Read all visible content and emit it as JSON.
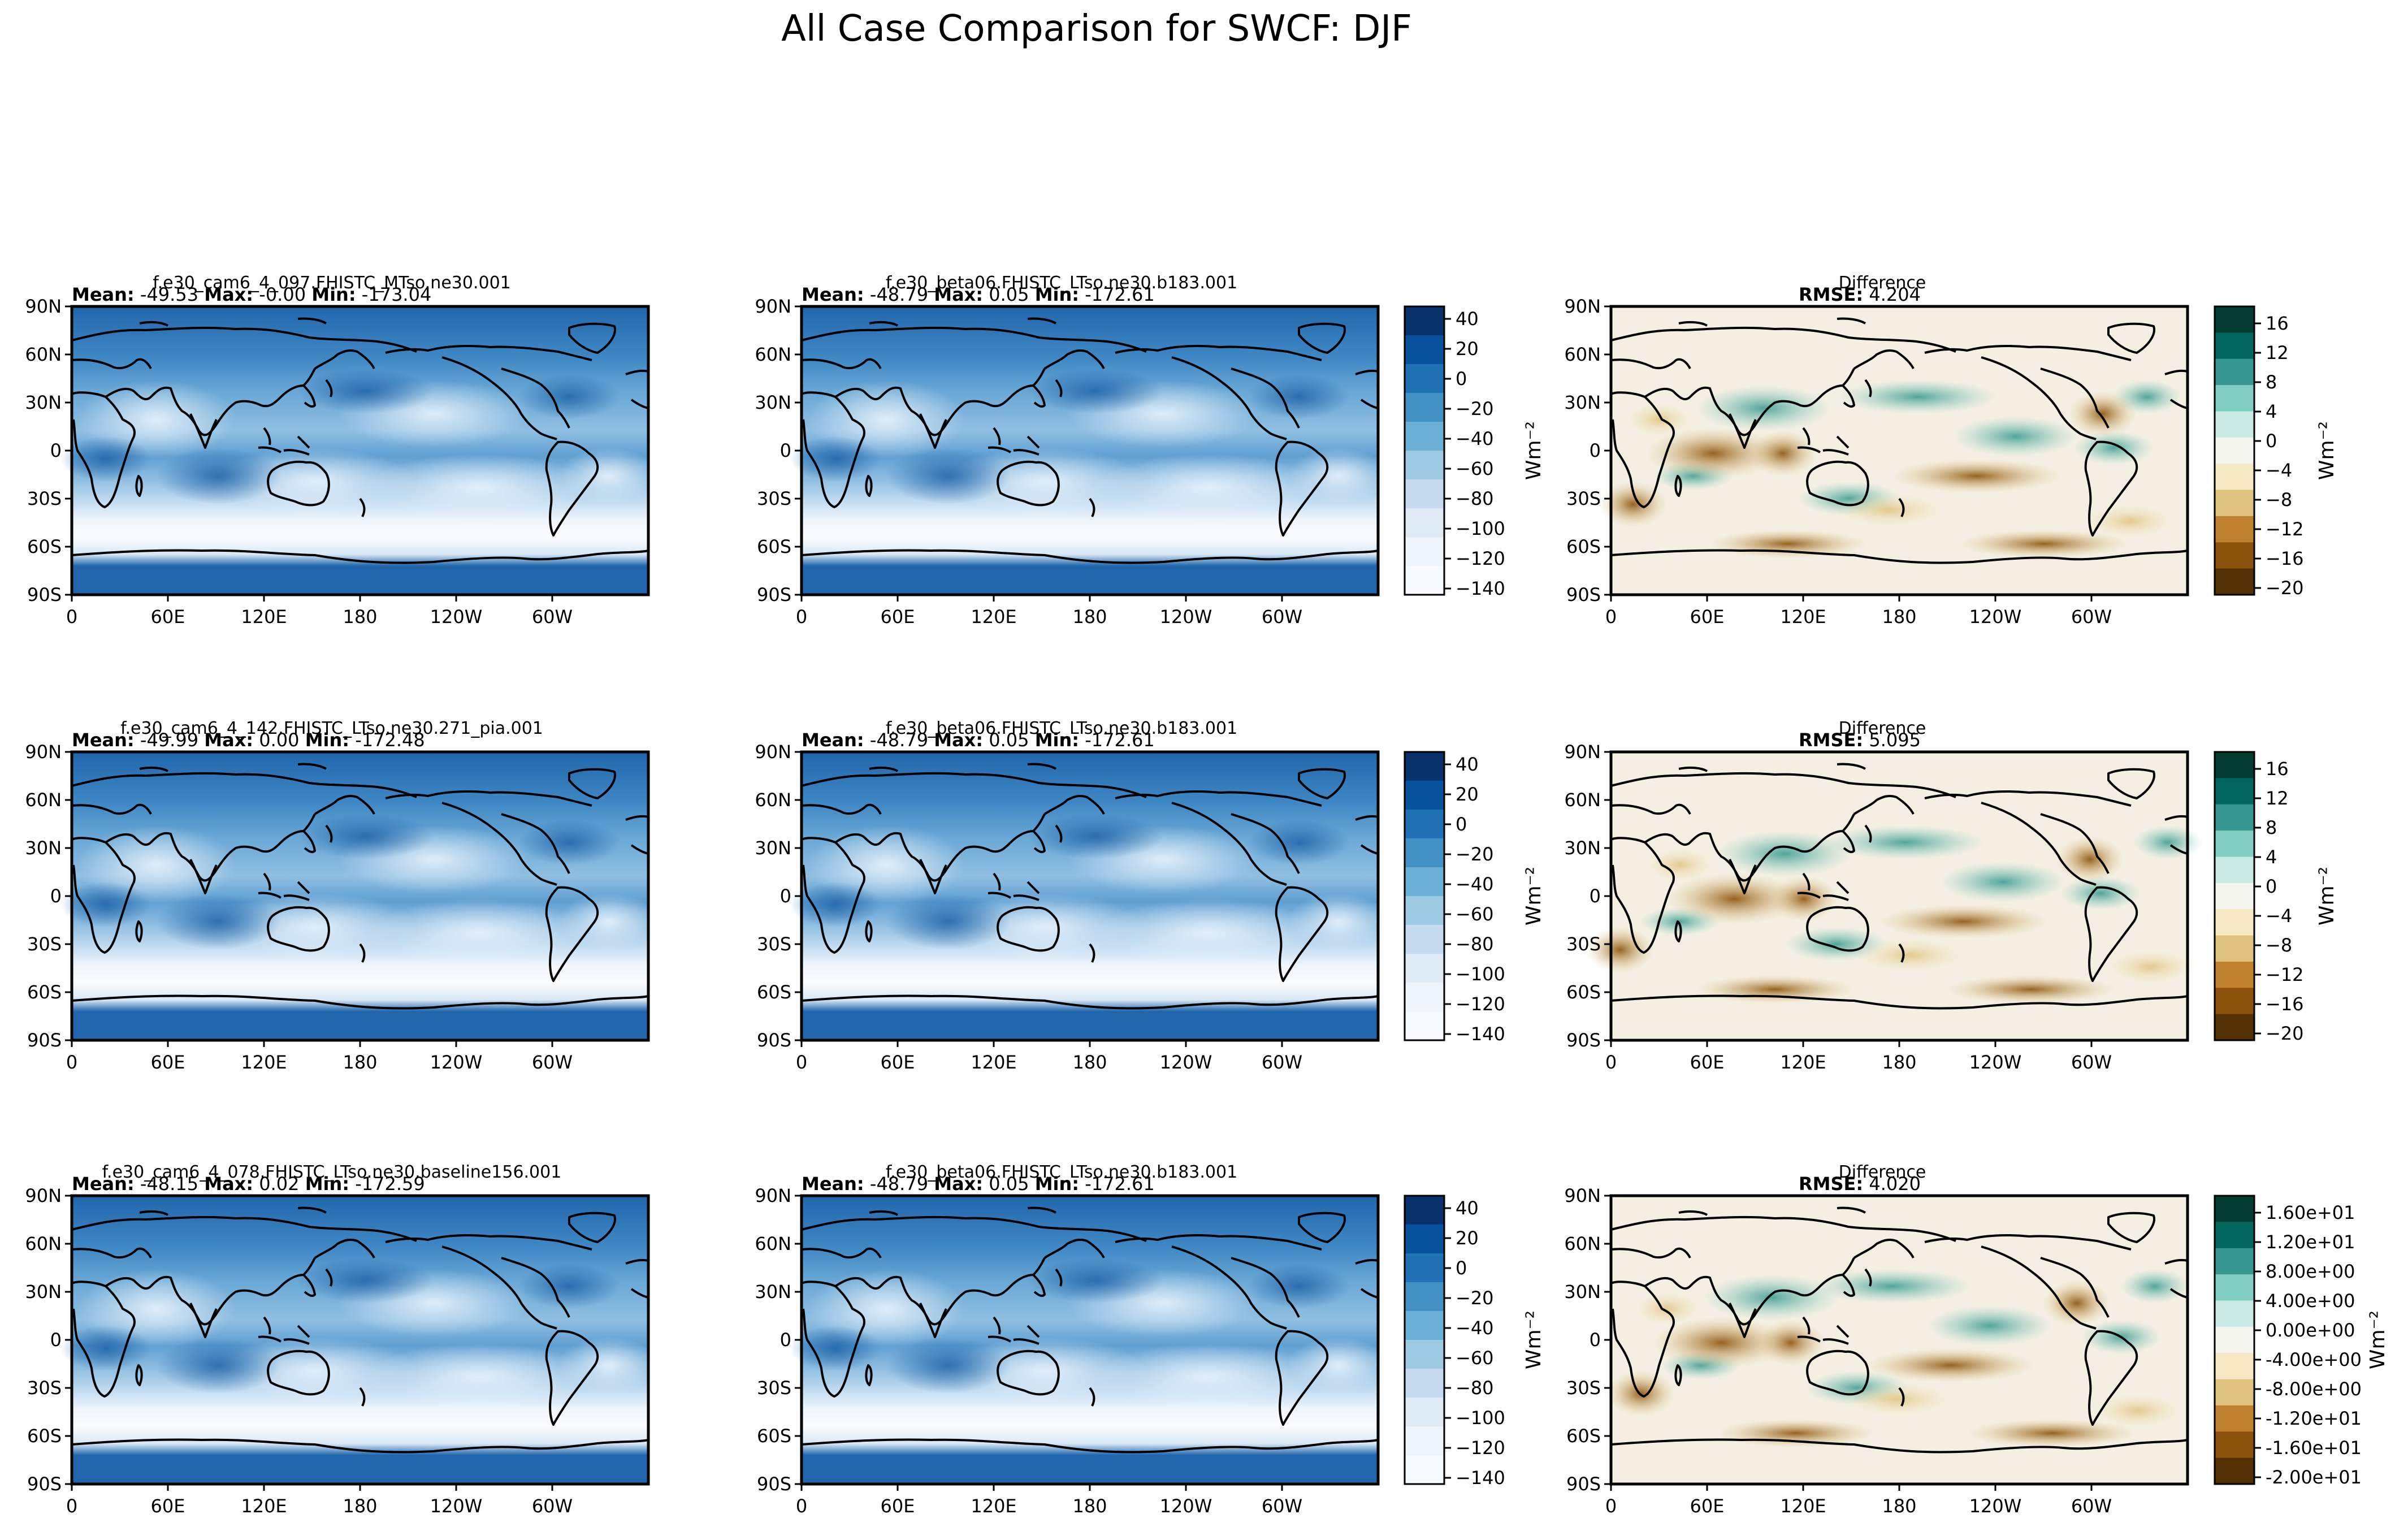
{
  "figure": {
    "title": "All Case Comparison for SWCF: DJF",
    "colors": {
      "ocean_dark": "#2266b0",
      "frame": "#000000"
    }
  },
  "stat_labels": {
    "mean": "Mean:",
    "max": "Max:",
    "min": "Min:",
    "rmse": "RMSE:"
  },
  "chart_data": {
    "type": "heatmap",
    "description_level": "Global lat-lon maps of shortwave cloud forcing (SWCF), DJF",
    "xticks": [
      "0",
      "60E",
      "120E",
      "180",
      "120W",
      "60W"
    ],
    "yticks": [
      "90N",
      "60N",
      "30N",
      "0",
      "30S",
      "60S",
      "90S"
    ],
    "xlim": [
      0,
      360
    ],
    "ylim": [
      -90,
      90
    ],
    "rows": [
      {
        "test": {
          "title": "f.e30_cam6_4_097.FHISTC_MTso.ne30.001",
          "mean": "-49.53",
          "max": "-0.00",
          "min": "-173.04"
        },
        "ref": {
          "title": "f.e30_beta06.FHISTC_LTso.ne30.b183.001",
          "mean": "-48.79",
          "max": "0.05",
          "min": "-172.61"
        },
        "diff": {
          "title": "Difference",
          "rmse": "4.204"
        }
      },
      {
        "test": {
          "title": "f.e30_cam6_4_142.FHISTC_LTso.ne30.271_pia.001",
          "mean": "-49.99",
          "max": "0.00",
          "min": "-172.48"
        },
        "ref": {
          "title": "f.e30_beta06.FHISTC_LTso.ne30.b183.001",
          "mean": "-48.79",
          "max": "0.05",
          "min": "-172.61"
        },
        "diff": {
          "title": "Difference",
          "rmse": "5.095"
        }
      },
      {
        "test": {
          "title": "f.e30_cam6_4_078.FHISTC_LTso.ne30.baseline156.001",
          "mean": "-48.15",
          "max": "0.02",
          "min": "-172.59"
        },
        "ref": {
          "title": "f.e30_beta06.FHISTC_LTso.ne30.b183.001",
          "mean": "-48.79",
          "max": "0.05",
          "min": "-172.61"
        },
        "diff": {
          "title": "Difference",
          "rmse": "4.020"
        }
      }
    ],
    "colorbar_main": {
      "label": "Wm⁻²",
      "ticks": [
        "40",
        "20",
        "0",
        "−20",
        "−40",
        "−60",
        "−80",
        "−100",
        "−120",
        "−140"
      ],
      "colors": [
        "#08306b",
        "#08519c",
        "#2171b5",
        "#4292c6",
        "#6baed6",
        "#9ecae1",
        "#c6dbef",
        "#deebf7",
        "#eef5fc",
        "#f7fbff"
      ]
    },
    "colorbar_diff": {
      "label": "Wm⁻²",
      "ticks_plain": [
        "16",
        "12",
        "8",
        "4",
        "0",
        "−4",
        "−8",
        "−12",
        "−16",
        "−20"
      ],
      "ticks_sci": [
        "1.60e+01",
        "1.20e+01",
        "8.00e+00",
        "4.00e+00",
        "0.00e+00",
        "-4.00e+00",
        "-8.00e+00",
        "-1.20e+01",
        "-1.60e+01",
        "-2.00e+01"
      ],
      "colors": [
        "#003c30",
        "#01665e",
        "#35978f",
        "#80cdc1",
        "#c7eae5",
        "#f5f5f0",
        "#f6e8c3",
        "#dfc27d",
        "#bf812d",
        "#8c510a",
        "#543005"
      ]
    }
  }
}
